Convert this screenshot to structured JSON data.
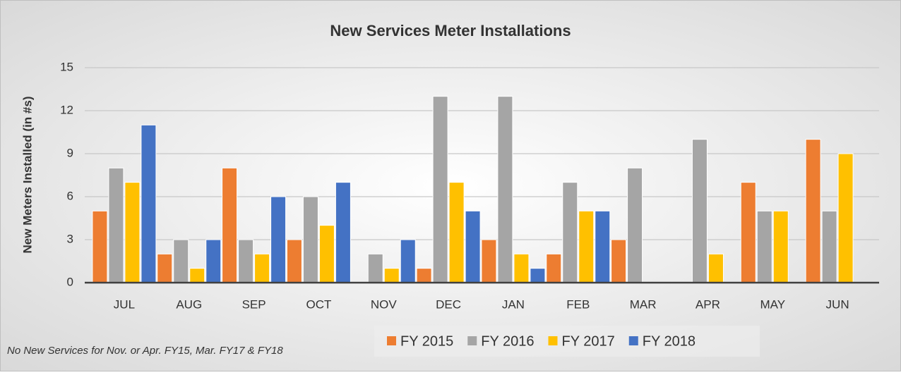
{
  "chart_data": {
    "type": "bar",
    "title": "New Services Meter Installations",
    "y_label": "New Meters Installed (in #s)",
    "note": "No New Services for Nov. or Apr. FY15, Mar. FY17 & FY18",
    "categories": [
      "JUL",
      "AUG",
      "SEP",
      "OCT",
      "NOV",
      "DEC",
      "JAN",
      "FEB",
      "MAR",
      "APR",
      "MAY",
      "JUN"
    ],
    "series": [
      {
        "name": "FY 2015",
        "color": "#ed7d31",
        "values": [
          5,
          2,
          8,
          3,
          0,
          1,
          3,
          2,
          3,
          0,
          7,
          10
        ]
      },
      {
        "name": "FY 2016",
        "color": "#a5a5a5",
        "values": [
          8,
          3,
          3,
          6,
          2,
          13,
          13,
          7,
          8,
          10,
          5,
          5
        ]
      },
      {
        "name": "FY 2017",
        "color": "#ffc000",
        "values": [
          7,
          1,
          2,
          4,
          1,
          7,
          2,
          5,
          0,
          2,
          5,
          9
        ]
      },
      {
        "name": "FY 2018",
        "color": "#4472c4",
        "values": [
          11,
          3,
          6,
          7,
          3,
          5,
          1,
          5,
          0,
          null,
          null,
          null
        ]
      }
    ],
    "ylim": [
      0,
      15
    ],
    "yticks": [
      0,
      3,
      6,
      9,
      12,
      15
    ],
    "grid": true,
    "legend": "bottom"
  }
}
